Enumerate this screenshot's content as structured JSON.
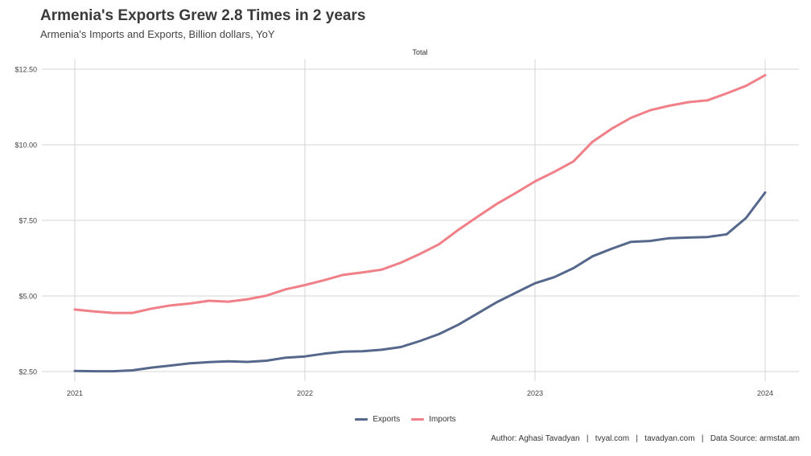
{
  "title": "Armenia's Exports Grew 2.8 Times in 2 years",
  "subtitle": "Armenia's Imports and Exports, Billion dollars, YoY",
  "facet_label": "Total",
  "caption": "Author: Aghasi Tavadyan   |   tvyal.com   |   tavadyan.com   |   Data Source: armstat.am",
  "legend": [
    {
      "label": "Exports",
      "color": "#55688c"
    },
    {
      "label": "Imports",
      "color": "#f07f88"
    }
  ],
  "chart_data": {
    "type": "line",
    "xlabel": "",
    "ylabel": "",
    "x_ticks": [
      {
        "label": "2021",
        "value": 2021.0
      },
      {
        "label": "2022",
        "value": 2022.0
      },
      {
        "label": "2023",
        "value": 2023.0
      },
      {
        "label": "2024",
        "value": 2024.0
      }
    ],
    "y_ticks": [
      {
        "label": "$2.50",
        "value": 2.5
      },
      {
        "label": "$5.00",
        "value": 5.0
      },
      {
        "label": "$7.50",
        "value": 7.5
      },
      {
        "label": "$10.00",
        "value": 10.0
      },
      {
        "label": "$12.50",
        "value": 12.5
      }
    ],
    "xlim": [
      2021.0,
      2024.0
    ],
    "ylim": [
      2.5,
      12.5
    ],
    "grid": true,
    "legend_position": "bottom",
    "x": [
      2021.0,
      2021.083,
      2021.167,
      2021.25,
      2021.333,
      2021.417,
      2021.5,
      2021.583,
      2021.667,
      2021.75,
      2021.833,
      2021.917,
      2022.0,
      2022.083,
      2022.167,
      2022.25,
      2022.333,
      2022.417,
      2022.5,
      2022.583,
      2022.667,
      2022.75,
      2022.833,
      2022.917,
      2023.0,
      2023.083,
      2023.167,
      2023.25,
      2023.333,
      2023.417,
      2023.5,
      2023.583,
      2023.667,
      2023.75,
      2023.833,
      2023.917,
      2024.0
    ],
    "series": [
      {
        "name": "Exports",
        "color": "#55688c",
        "values": [
          2.52,
          2.51,
          2.51,
          2.54,
          2.63,
          2.7,
          2.77,
          2.81,
          2.84,
          2.82,
          2.86,
          2.96,
          3.0,
          3.09,
          3.16,
          3.17,
          3.22,
          3.31,
          3.51,
          3.74,
          4.05,
          4.42,
          4.79,
          5.11,
          5.42,
          5.62,
          5.92,
          6.31,
          6.56,
          6.79,
          6.82,
          6.91,
          6.93,
          6.95,
          7.04,
          7.58,
          8.42
        ]
      },
      {
        "name": "Imports",
        "color": "#f07f88",
        "values": [
          4.55,
          4.49,
          4.44,
          4.44,
          4.58,
          4.69,
          4.75,
          4.84,
          4.81,
          4.89,
          5.01,
          5.22,
          5.36,
          5.52,
          5.7,
          5.78,
          5.87,
          6.1,
          6.39,
          6.71,
          7.19,
          7.62,
          8.04,
          8.41,
          8.79,
          9.1,
          9.45,
          10.1,
          10.53,
          10.89,
          11.14,
          11.29,
          11.41,
          11.47,
          11.7,
          11.95,
          12.3
        ]
      }
    ]
  }
}
